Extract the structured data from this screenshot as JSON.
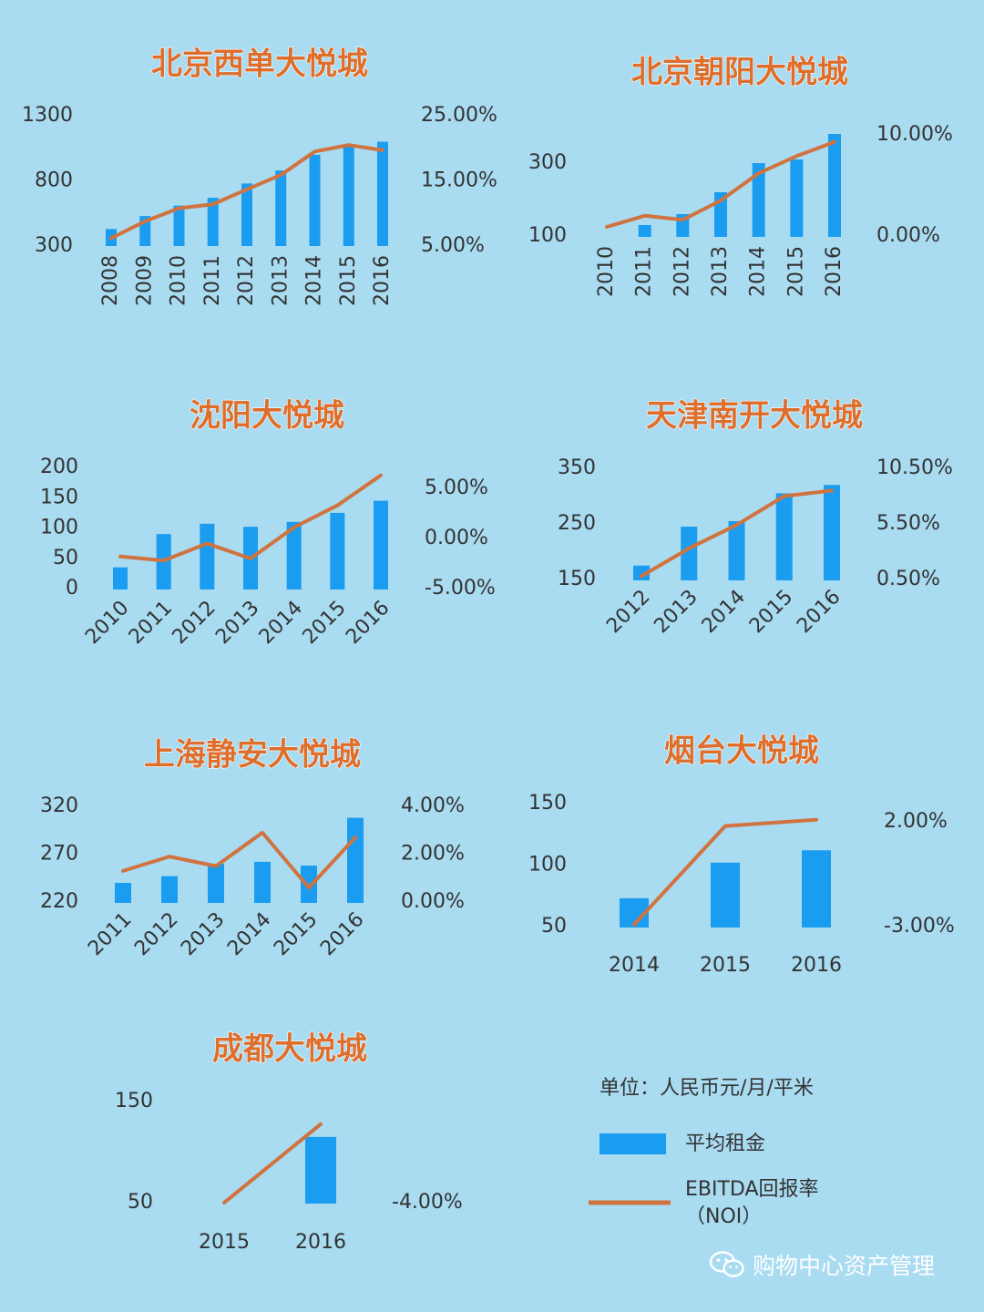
{
  "colors": {
    "background": "#a9dbf1",
    "bar": "#1a9cf0",
    "line": "#d0733f",
    "title": "#dd6e2c",
    "text": "#333333"
  },
  "chart_data": [
    {
      "type": "bar",
      "title": "北京西单大悦城",
      "categories": [
        "2008",
        "2009",
        "2010",
        "2011",
        "2012",
        "2013",
        "2014",
        "2015",
        "2016"
      ],
      "series": [
        {
          "kind": "bar",
          "axis": "left",
          "values": [
            430,
            530,
            610,
            670,
            780,
            880,
            1000,
            1070,
            1100
          ]
        },
        {
          "kind": "line",
          "axis": "right",
          "values": [
            6.2,
            8.8,
            10.8,
            11.4,
            13.7,
            15.9,
            19.5,
            20.5,
            19.7
          ]
        }
      ],
      "y_left": {
        "ticks": [
          300,
          800,
          1300
        ],
        "labels": [
          "300",
          "800",
          "1300"
        ]
      },
      "y_right": {
        "ticks": [
          5,
          15,
          25
        ],
        "labels": [
          "5.00%",
          "15.00%",
          "25.00%"
        ]
      },
      "xlabel_rotation": "vertical"
    },
    {
      "type": "bar",
      "title": "北京朝阳大悦城",
      "categories": [
        "2010",
        "2011",
        "2012",
        "2013",
        "2014",
        "2015",
        "2016"
      ],
      "series": [
        {
          "kind": "bar",
          "axis": "left",
          "values": [
            95,
            130,
            160,
            220,
            300,
            310,
            380
          ]
        },
        {
          "kind": "line",
          "axis": "right",
          "values": [
            0.9,
            2.0,
            1.6,
            3.5,
            6.2,
            7.9,
            9.3
          ]
        }
      ],
      "y_left": {
        "ticks": [
          100,
          300
        ],
        "labels": [
          "100",
          "300"
        ]
      },
      "y_right": {
        "ticks": [
          0,
          10
        ],
        "labels": [
          "0.00%",
          "10.00%"
        ]
      },
      "xlabel_rotation": "vertical"
    },
    {
      "type": "bar",
      "title": "沈阳大悦城",
      "categories": [
        "2010",
        "2011",
        "2012",
        "2013",
        "2014",
        "2015",
        "2016"
      ],
      "series": [
        {
          "kind": "bar",
          "axis": "left",
          "values": [
            35,
            90,
            107,
            102,
            110,
            125,
            145
          ]
        },
        {
          "kind": "line",
          "axis": "right",
          "values": [
            -1.8,
            -2.2,
            -0.5,
            -2.0,
            1.1,
            3.3,
            6.3
          ]
        }
      ],
      "y_left": {
        "ticks": [
          0,
          50,
          100,
          150,
          200
        ],
        "labels": [
          "0",
          "50",
          "100",
          "150",
          "200"
        ]
      },
      "y_right": {
        "ticks": [
          -5,
          0,
          5
        ],
        "labels": [
          "-5.00%",
          "0.00%",
          "5.00%"
        ]
      },
      "xlabel_rotation": "diagonal"
    },
    {
      "type": "bar",
      "title": "天津南开大悦城",
      "categories": [
        "2012",
        "2013",
        "2014",
        "2015",
        "2016"
      ],
      "series": [
        {
          "kind": "bar",
          "axis": "left",
          "values": [
            175,
            245,
            255,
            305,
            320
          ]
        },
        {
          "kind": "line",
          "axis": "right",
          "values": [
            0.8,
            3.3,
            5.4,
            8.0,
            8.5
          ]
        }
      ],
      "y_left": {
        "ticks": [
          150,
          250,
          350
        ],
        "labels": [
          "150",
          "250",
          "350"
        ]
      },
      "y_right": {
        "ticks": [
          0.5,
          5.5,
          10.5
        ],
        "labels": [
          "0.50%",
          "5.50%",
          "10.50%"
        ]
      },
      "xlabel_rotation": "diagonal"
    },
    {
      "type": "bar",
      "title": "上海静安大悦城",
      "categories": [
        "2011",
        "2012",
        "2013",
        "2014",
        "2015",
        "2016"
      ],
      "series": [
        {
          "kind": "bar",
          "axis": "left",
          "values": [
            240,
            247,
            260,
            262,
            258,
            308
          ]
        },
        {
          "kind": "line",
          "axis": "right",
          "values": [
            1.3,
            1.9,
            1.5,
            2.9,
            0.6,
            2.7
          ]
        }
      ],
      "y_left": {
        "ticks": [
          220,
          270,
          320
        ],
        "labels": [
          "220",
          "270",
          "320"
        ]
      },
      "y_right": {
        "ticks": [
          0,
          2,
          4
        ],
        "labels": [
          "0.00%",
          "2.00%",
          "4.00%"
        ]
      },
      "xlabel_rotation": "diagonal"
    },
    {
      "type": "bar",
      "title": "烟台大悦城",
      "categories": [
        "2014",
        "2015",
        "2016"
      ],
      "series": [
        {
          "kind": "bar",
          "axis": "left",
          "values": [
            73,
            102,
            112
          ]
        },
        {
          "kind": "line",
          "axis": "right",
          "values": [
            -2.9,
            1.8,
            2.1
          ]
        }
      ],
      "y_left": {
        "ticks": [
          50,
          100,
          150
        ],
        "labels": [
          "50",
          "100",
          "150"
        ]
      },
      "y_right": {
        "ticks": [
          -3,
          2
        ],
        "labels": [
          "-3.00%",
          "2.00%"
        ]
      },
      "xlabel_rotation": "horizontal"
    },
    {
      "type": "bar",
      "title": "成都大悦城",
      "categories": [
        "2015",
        "2016"
      ],
      "series": [
        {
          "kind": "bar",
          "axis": "left",
          "values": [
            null,
            115
          ]
        },
        {
          "kind": "line",
          "axis": "right",
          "values": [
            -4.0,
            0.7
          ]
        }
      ],
      "y_left": {
        "ticks": [
          50,
          150
        ],
        "labels": [
          "50",
          "150"
        ]
      },
      "y_right": {
        "ticks": [
          -4
        ],
        "labels": [
          "-4.00%"
        ]
      },
      "xlabel_rotation": "horizontal"
    }
  ],
  "legend": {
    "unit": "单位：人民币元/月/平米",
    "bar_label": "平均租金",
    "line_label_1": "EBITDA回报率",
    "line_label_2": "（NOI）"
  },
  "watermark": {
    "text": "购物中心资产管理",
    "icon": "wechat-icon"
  }
}
